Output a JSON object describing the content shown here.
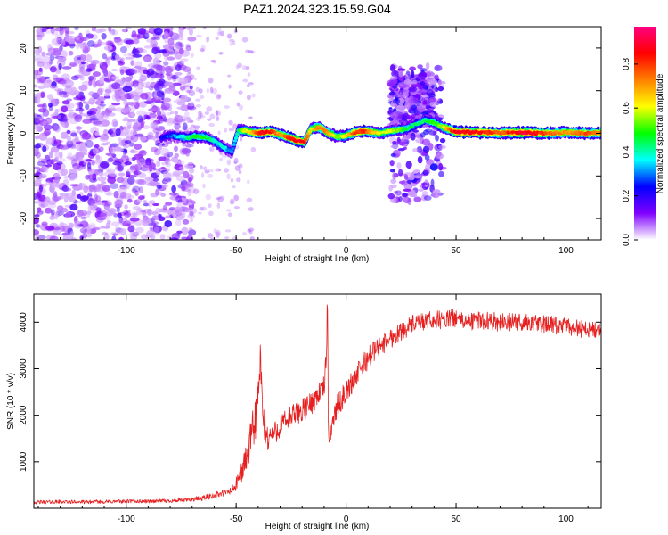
{
  "figure": {
    "title": "PAZ1.2024.323.15.59.G04"
  },
  "chart_data": [
    {
      "type": "heatmap",
      "xlabel": "Height of straight line (km)",
      "ylabel": "Frequency (Hz)",
      "xlim": [
        -142,
        116
      ],
      "ylim": [
        -25,
        25
      ],
      "xticks": [
        -100,
        -50,
        0,
        50,
        100
      ],
      "xtick_labels": [
        "-100",
        "-50",
        "0",
        "50",
        "100"
      ],
      "yticks": [
        -20,
        -10,
        0,
        10,
        20
      ],
      "ytick_labels": [
        "-20",
        "-10",
        "0",
        "10",
        "20"
      ],
      "colorbar": {
        "label": "Normalized spectral amplitude",
        "range": [
          0,
          0.97
        ],
        "ticks": [
          0.0,
          0.2,
          0.4,
          0.6,
          0.8
        ],
        "tick_labels": [
          "0.0",
          "0.2",
          "0.4",
          "0.6",
          "0.8"
        ],
        "colormap": [
          "#ffffff",
          "#8000ff",
          "#0000ff",
          "#00ffff",
          "#00ff00",
          "#ffff00",
          "#ff8000",
          "#ff0000",
          "#ff0080"
        ]
      },
      "noise_region_x": [
        -142,
        -72
      ],
      "ridge": {
        "x": [
          -84,
          -80,
          -76,
          -72,
          -68,
          -64,
          -60,
          -56,
          -52,
          -49,
          -46,
          -42,
          -38,
          -34,
          -30,
          -26,
          -22,
          -19,
          -16,
          -12,
          -8,
          -4,
          0,
          4,
          8,
          12,
          16,
          20,
          24,
          28,
          32,
          36,
          40,
          44,
          50,
          60,
          70,
          80,
          90,
          100,
          110,
          116
        ],
        "freq": [
          -1.0,
          -0.5,
          -0.8,
          -1.0,
          -0.7,
          -0.9,
          -1.8,
          -3.2,
          -4.5,
          0.8,
          0.6,
          0.2,
          0.1,
          0.4,
          -0.3,
          -1.0,
          -1.8,
          -2.0,
          1.0,
          1.4,
          0.0,
          -0.8,
          -0.5,
          0.2,
          0.5,
          0.3,
          0.0,
          0.5,
          0.8,
          1.2,
          2.2,
          3.0,
          2.5,
          1.5,
          0.3,
          0.2,
          0.1,
          0.2,
          0.0,
          0.2,
          0.0,
          0.2
        ],
        "amplitude": [
          0.22,
          0.28,
          0.35,
          0.42,
          0.5,
          0.48,
          0.4,
          0.38,
          0.3,
          0.45,
          0.6,
          0.72,
          0.9,
          0.85,
          0.7,
          0.85,
          0.92,
          0.88,
          0.6,
          0.75,
          0.72,
          0.55,
          0.65,
          0.8,
          0.85,
          0.7,
          0.6,
          0.62,
          0.55,
          0.48,
          0.42,
          0.45,
          0.5,
          0.6,
          0.9,
          0.88,
          0.78,
          0.93,
          0.82,
          0.72,
          0.8,
          0.75
        ]
      },
      "broadband_blobs": [
        {
          "x": 32,
          "freq": 0,
          "x_halfwidth": 12,
          "f_halfwidth": 16
        },
        {
          "x": 30,
          "freq": 8,
          "x_halfwidth": 10,
          "f_halfwidth": 6
        }
      ]
    },
    {
      "type": "line",
      "xlabel": "Height of straight line (km)",
      "ylabel": "SNR (10 * v/v)",
      "xlim": [
        -142,
        116
      ],
      "ylim": [
        0,
        4600
      ],
      "xticks": [
        -100,
        -50,
        0,
        50,
        100
      ],
      "xtick_labels": [
        "-100",
        "-50",
        "0",
        "50",
        "100"
      ],
      "yticks": [
        1000,
        2000,
        3000,
        4000
      ],
      "ytick_labels": [
        "1000",
        "2000",
        "3000",
        "4000"
      ],
      "series": [
        {
          "color": "#e62020",
          "x": [
            -142,
            -130,
            -120,
            -110,
            -100,
            -90,
            -80,
            -75,
            -70,
            -65,
            -60,
            -55,
            -52,
            -50,
            -47,
            -44,
            -42,
            -40,
            -39,
            -38,
            -36,
            -32,
            -28,
            -24,
            -20,
            -16,
            -12,
            -10,
            -9,
            -8.5,
            -8,
            -6,
            -4,
            0,
            4,
            8,
            12,
            16,
            20,
            25,
            30,
            35,
            40,
            45,
            50,
            55,
            60,
            70,
            80,
            90,
            100,
            110,
            116
          ],
          "y": [
            130,
            140,
            135,
            140,
            150,
            150,
            160,
            170,
            190,
            220,
            280,
            330,
            380,
            500,
            850,
            1300,
            1750,
            2300,
            3200,
            2000,
            1500,
            1650,
            1850,
            2000,
            2100,
            2250,
            2500,
            2600,
            3200,
            4550,
            1400,
            1900,
            2200,
            2500,
            2800,
            3100,
            3350,
            3500,
            3650,
            3800,
            3950,
            4000,
            4050,
            4050,
            4100,
            4000,
            4050,
            4000,
            4000,
            3950,
            3900,
            3850,
            3800
          ],
          "noise_amplitude": [
            40,
            40,
            40,
            40,
            40,
            40,
            40,
            45,
            50,
            60,
            70,
            80,
            100,
            150,
            250,
            400,
            500,
            600,
            400,
            500,
            350,
            250,
            250,
            250,
            250,
            250,
            250,
            250,
            300,
            100,
            200,
            250,
            250,
            250,
            250,
            250,
            250,
            220,
            220,
            200,
            200,
            200,
            200,
            200,
            200,
            200,
            200,
            200,
            200,
            200,
            200,
            200,
            200
          ]
        }
      ]
    }
  ]
}
